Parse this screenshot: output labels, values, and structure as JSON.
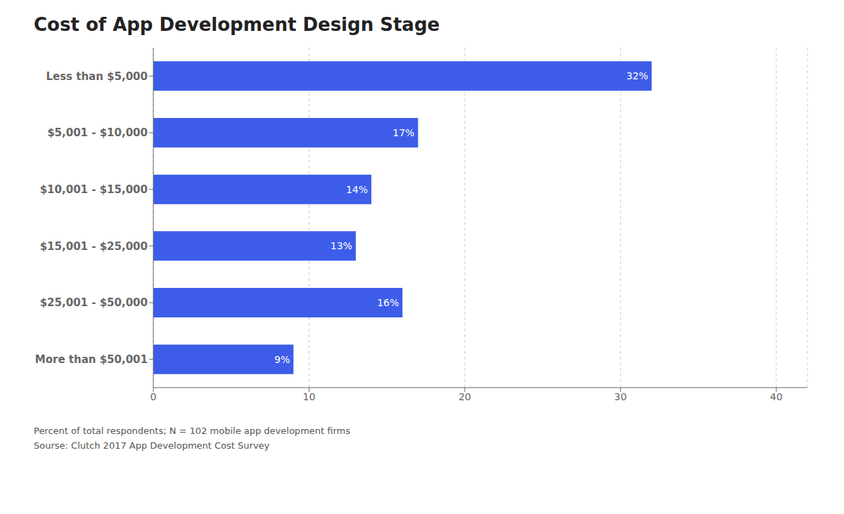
{
  "chart_data": {
    "type": "bar",
    "orientation": "horizontal",
    "title": "Cost of App Development Design Stage",
    "categories": [
      "Less than $5,000",
      "$5,001 - $10,000",
      "$10,001 - $15,000",
      "$15,001 - $25,000",
      "$25,001 - $50,000",
      "More than $50,001"
    ],
    "values": [
      32,
      17,
      14,
      13,
      16,
      9
    ],
    "value_labels": [
      "32%",
      "17%",
      "14%",
      "13%",
      "16%",
      "9%"
    ],
    "data_labels": true,
    "color": "#3d5de8",
    "xlim": [
      0,
      42
    ],
    "xticks": [
      0,
      10,
      20,
      30,
      40
    ],
    "grid": true,
    "annotations": [
      "Percent of total respondents; N = 102 mobile app development firms",
      "Sourse: Clutch 2017 App Development Cost Survey"
    ]
  }
}
